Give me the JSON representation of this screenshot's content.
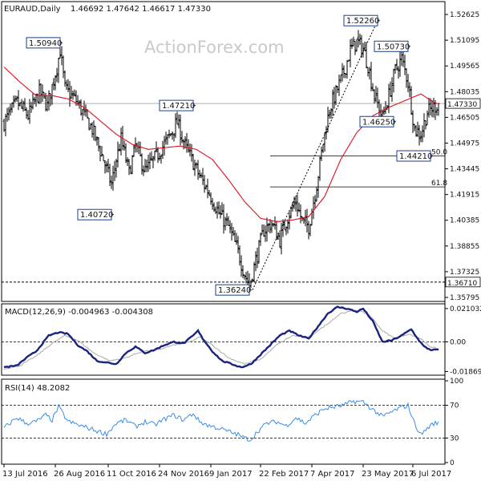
{
  "header": {
    "symbol": "EURAUD,Daily",
    "ohlc": "1.46692 1.47642 1.46617 1.47330"
  },
  "watermark": "ActionForex.com",
  "colors": {
    "candles": "#000000",
    "ma": "#e0101e",
    "macd": "#1a237e",
    "signal": "#b0b0b0",
    "rsi": "#3a8ee6",
    "lines": "#000000"
  },
  "chart_data": [
    {
      "type": "candlestick",
      "panel": "price",
      "ylim": [
        1.357,
        1.532
      ],
      "y_ticks": [
        "1.52625",
        "1.51095",
        "1.49565",
        "1.48035",
        "1.46505",
        "1.44975",
        "1.43445",
        "1.41915",
        "1.40385",
        "1.38855",
        "1.37325",
        "1.35795"
      ],
      "x_ticks": [
        "13 Jul 2016",
        "26 Aug 2016",
        "11 Oct 2016",
        "24 Nov 2016",
        "9 Jan 2017",
        "22 Feb 2017",
        "7 Apr 2017",
        "23 May 2017",
        "6 Jul 2017"
      ],
      "x_tick_index": [
        0,
        32,
        65,
        97,
        129,
        160,
        192,
        224,
        255
      ],
      "series_length": 272,
      "close_waypoints": [
        [
          0,
          1.462
        ],
        [
          8,
          1.474
        ],
        [
          15,
          1.466
        ],
        [
          22,
          1.48
        ],
        [
          27,
          1.472
        ],
        [
          33,
          1.495
        ],
        [
          35,
          1.505
        ],
        [
          38,
          1.482
        ],
        [
          45,
          1.475
        ],
        [
          55,
          1.458
        ],
        [
          62,
          1.44
        ],
        [
          67,
          1.425
        ],
        [
          70,
          1.44
        ],
        [
          73,
          1.452
        ],
        [
          78,
          1.432
        ],
        [
          82,
          1.448
        ],
        [
          88,
          1.433
        ],
        [
          95,
          1.442
        ],
        [
          102,
          1.452
        ],
        [
          108,
          1.462
        ],
        [
          113,
          1.448
        ],
        [
          117,
          1.44
        ],
        [
          122,
          1.43
        ],
        [
          128,
          1.42
        ],
        [
          134,
          1.408
        ],
        [
          140,
          1.4
        ],
        [
          146,
          1.385
        ],
        [
          150,
          1.372
        ],
        [
          153,
          1.365
        ],
        [
          157,
          1.38
        ],
        [
          162,
          1.398
        ],
        [
          167,
          1.402
        ],
        [
          172,
          1.392
        ],
        [
          177,
          1.406
        ],
        [
          182,
          1.415
        ],
        [
          186,
          1.403
        ],
        [
          190,
          1.4
        ],
        [
          195,
          1.425
        ],
        [
          199,
          1.45
        ],
        [
          203,
          1.47
        ],
        [
          208,
          1.482
        ],
        [
          212,
          1.492
        ],
        [
          216,
          1.505
        ],
        [
          220,
          1.51
        ],
        [
          224,
          1.506
        ],
        [
          227,
          1.496
        ],
        [
          231,
          1.478
        ],
        [
          236,
          1.465
        ],
        [
          240,
          1.478
        ],
        [
          244,
          1.493
        ],
        [
          248,
          1.5
        ],
        [
          252,
          1.486
        ],
        [
          256,
          1.458
        ],
        [
          260,
          1.455
        ],
        [
          264,
          1.468
        ],
        [
          268,
          1.471
        ],
        [
          271,
          1.4733
        ]
      ],
      "ma_waypoints": [
        [
          0,
          1.495
        ],
        [
          10,
          1.486
        ],
        [
          20,
          1.478
        ],
        [
          30,
          1.478
        ],
        [
          40,
          1.476
        ],
        [
          50,
          1.471
        ],
        [
          60,
          1.463
        ],
        [
          70,
          1.455
        ],
        [
          80,
          1.449
        ],
        [
          90,
          1.446
        ],
        [
          100,
          1.447
        ],
        [
          110,
          1.448
        ],
        [
          120,
          1.446
        ],
        [
          130,
          1.44
        ],
        [
          140,
          1.428
        ],
        [
          150,
          1.415
        ],
        [
          160,
          1.405
        ],
        [
          170,
          1.403
        ],
        [
          180,
          1.404
        ],
        [
          190,
          1.406
        ],
        [
          200,
          1.418
        ],
        [
          210,
          1.44
        ],
        [
          220,
          1.456
        ],
        [
          230,
          1.466
        ],
        [
          240,
          1.471
        ],
        [
          250,
          1.475
        ],
        [
          260,
          1.479
        ],
        [
          268,
          1.474
        ],
        [
          271,
          1.4731
        ]
      ],
      "levels": [
        {
          "value": 1.4733,
          "label": "1.47330",
          "style": "current"
        },
        {
          "value": 1.3671,
          "label": "1.36710",
          "style": "dashed"
        }
      ],
      "fib_levels": [
        {
          "value": 1.4421,
          "label": "50.0",
          "from_index": 166
        },
        {
          "value": 1.4237,
          "label": "61.8",
          "from_index": 166
        }
      ],
      "trendline": {
        "from": [
          155,
          1.3624
        ],
        "to": [
          233,
          1.5226
        ]
      },
      "annotations": [
        {
          "text": "1.50940",
          "index": 35,
          "value": 1.5094,
          "side": "left"
        },
        {
          "text": "1.40720",
          "index": 67,
          "value": 1.4072,
          "side": "left"
        },
        {
          "text": "1.47210",
          "index": 118,
          "value": 1.4721,
          "side": "left"
        },
        {
          "text": "1.36240",
          "index": 153,
          "value": 1.3624,
          "side": "left"
        },
        {
          "text": "1.52260",
          "index": 233,
          "value": 1.5226,
          "side": "left"
        },
        {
          "text": "1.50730",
          "index": 252,
          "value": 1.5073,
          "side": "left"
        },
        {
          "text": "1.46250",
          "index": 243,
          "value": 1.4625,
          "side": "left"
        },
        {
          "text": "1.44210",
          "index": 266,
          "value": 1.4421,
          "side": "left"
        }
      ]
    },
    {
      "type": "line",
      "panel": "macd",
      "title": "MACD(12,26,9) -0.004963 -0.004308",
      "ylim": [
        -0.02,
        0.023
      ],
      "y_ticks": [
        "0.021032",
        "0.00",
        "-0.018699"
      ],
      "series": [
        {
          "name": "MACD",
          "waypoints": [
            [
              0,
              -0.016
            ],
            [
              8,
              -0.015
            ],
            [
              14,
              -0.01
            ],
            [
              20,
              -0.006
            ],
            [
              28,
              0.004
            ],
            [
              34,
              0.006
            ],
            [
              40,
              0.005
            ],
            [
              46,
              -0.002
            ],
            [
              52,
              -0.006
            ],
            [
              58,
              -0.012
            ],
            [
              64,
              -0.013
            ],
            [
              70,
              -0.014
            ],
            [
              76,
              -0.007
            ],
            [
              82,
              -0.003
            ],
            [
              88,
              -0.007
            ],
            [
              94,
              -0.005
            ],
            [
              100,
              -0.002
            ],
            [
              106,
              0.0
            ],
            [
              112,
              -0.001
            ],
            [
              118,
              0.004
            ],
            [
              121,
              0.007
            ],
            [
              124,
              0.002
            ],
            [
              130,
              -0.006
            ],
            [
              136,
              -0.012
            ],
            [
              142,
              -0.014
            ],
            [
              148,
              -0.016
            ],
            [
              154,
              -0.014
            ],
            [
              160,
              -0.008
            ],
            [
              166,
              -0.002
            ],
            [
              172,
              0.004
            ],
            [
              178,
              0.007
            ],
            [
              184,
              0.004
            ],
            [
              190,
              0.002
            ],
            [
              196,
              0.01
            ],
            [
              202,
              0.018
            ],
            [
              208,
              0.022
            ],
            [
              214,
              0.021
            ],
            [
              220,
              0.019
            ],
            [
              224,
              0.021
            ],
            [
              230,
              0.013
            ],
            [
              236,
              0.0
            ],
            [
              242,
              0.001
            ],
            [
              248,
              0.004
            ],
            [
              254,
              0.008
            ],
            [
              258,
              0.002
            ],
            [
              262,
              -0.003
            ],
            [
              266,
              -0.005
            ],
            [
              270,
              -0.005
            ]
          ]
        },
        {
          "name": "Signal",
          "waypoints": [
            [
              0,
              -0.017
            ],
            [
              10,
              -0.015
            ],
            [
              20,
              -0.009
            ],
            [
              30,
              -0.001
            ],
            [
              38,
              0.004
            ],
            [
              46,
              0.001
            ],
            [
              56,
              -0.007
            ],
            [
              66,
              -0.012
            ],
            [
              76,
              -0.01
            ],
            [
              86,
              -0.006
            ],
            [
              96,
              -0.005
            ],
            [
              106,
              -0.002
            ],
            [
              116,
              0.0
            ],
            [
              122,
              0.003
            ],
            [
              130,
              -0.002
            ],
            [
              140,
              -0.01
            ],
            [
              150,
              -0.014
            ],
            [
              160,
              -0.011
            ],
            [
              170,
              -0.002
            ],
            [
              180,
              0.004
            ],
            [
              190,
              0.003
            ],
            [
              200,
              0.01
            ],
            [
              210,
              0.018
            ],
            [
              220,
              0.02
            ],
            [
              228,
              0.017
            ],
            [
              236,
              0.007
            ],
            [
              244,
              0.002
            ],
            [
              252,
              0.005
            ],
            [
              260,
              0.002
            ],
            [
              266,
              -0.003
            ],
            [
              270,
              -0.0043
            ]
          ]
        }
      ]
    },
    {
      "type": "line",
      "panel": "rsi",
      "title": "RSI(14) 48.2082",
      "ylim": [
        0,
        100
      ],
      "y_ticks": [
        "100",
        "70",
        "30",
        "0"
      ],
      "guides": [
        70,
        30
      ],
      "series": [
        {
          "name": "RSI",
          "waypoints": [
            [
              0,
              42
            ],
            [
              8,
              55
            ],
            [
              14,
              48
            ],
            [
              20,
              50
            ],
            [
              26,
              58
            ],
            [
              30,
              52
            ],
            [
              34,
              68
            ],
            [
              36,
              62
            ],
            [
              40,
              50
            ],
            [
              48,
              45
            ],
            [
              56,
              40
            ],
            [
              64,
              35
            ],
            [
              70,
              48
            ],
            [
              76,
              52
            ],
            [
              82,
              44
            ],
            [
              88,
              50
            ],
            [
              94,
              46
            ],
            [
              100,
              53
            ],
            [
              106,
              58
            ],
            [
              112,
              52
            ],
            [
              118,
              60
            ],
            [
              122,
              50
            ],
            [
              128,
              45
            ],
            [
              134,
              42
            ],
            [
              140,
              38
            ],
            [
              146,
              34
            ],
            [
              150,
              30
            ],
            [
              154,
              28
            ],
            [
              158,
              38
            ],
            [
              164,
              48
            ],
            [
              170,
              50
            ],
            [
              176,
              45
            ],
            [
              182,
              55
            ],
            [
              188,
              48
            ],
            [
              194,
              58
            ],
            [
              200,
              66
            ],
            [
              206,
              68
            ],
            [
              212,
              70
            ],
            [
              218,
              75
            ],
            [
              224,
              74
            ],
            [
              230,
              65
            ],
            [
              236,
              56
            ],
            [
              240,
              60
            ],
            [
              246,
              66
            ],
            [
              252,
              70
            ],
            [
              256,
              48
            ],
            [
              260,
              34
            ],
            [
              264,
              42
            ],
            [
              268,
              48
            ],
            [
              271,
              48.2
            ]
          ]
        }
      ]
    }
  ]
}
